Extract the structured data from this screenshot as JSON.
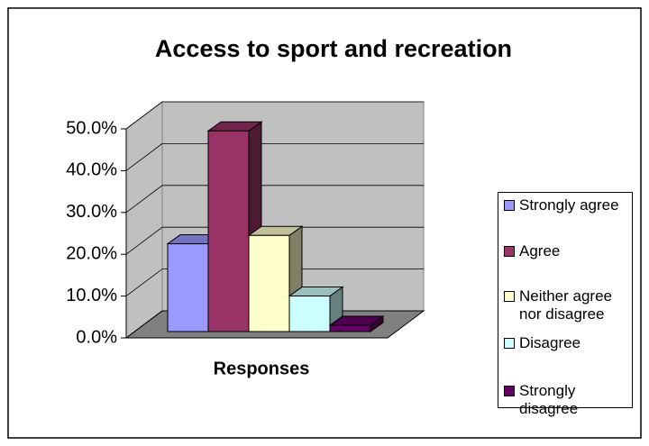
{
  "chart_data": {
    "type": "bar3d",
    "title": "Access to sport and recreation",
    "categories": [
      "Responses"
    ],
    "series": [
      {
        "name": "Strongly agree",
        "color": "#9999ff",
        "values": [
          21
        ]
      },
      {
        "name": "Agree",
        "color": "#993366",
        "values": [
          48
        ]
      },
      {
        "name": "Neither agree nor disagree",
        "color": "#ffffcc",
        "values": [
          23
        ]
      },
      {
        "name": "Disagree",
        "color": "#ccffff",
        "values": [
          8.5
        ]
      },
      {
        "name": "Strongly disagree",
        "color": "#660066",
        "values": [
          1.5
        ]
      }
    ],
    "ylim": [
      0,
      50
    ],
    "yticks": [
      {
        "value": 0,
        "label": "0.0%"
      },
      {
        "value": 10,
        "label": "10.0%"
      },
      {
        "value": 20,
        "label": "20.0%"
      },
      {
        "value": 30,
        "label": "30.0%"
      },
      {
        "value": 40,
        "label": "40.0%"
      },
      {
        "value": 50,
        "label": "50.0%"
      }
    ],
    "grid": true,
    "legend": "right"
  }
}
